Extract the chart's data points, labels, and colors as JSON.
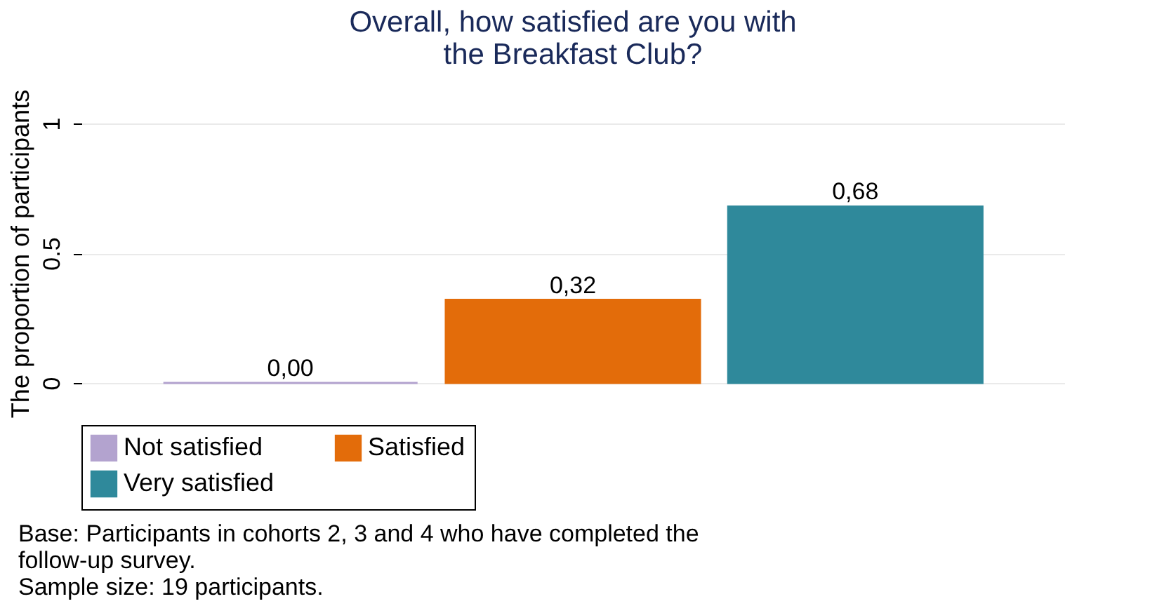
{
  "chart_data": {
    "type": "bar",
    "title": "Overall, how satisfied are you with\nthe Breakfast Club?",
    "ylabel": "The proportion of participants",
    "categories": [
      null
    ],
    "series": [
      {
        "name": "Not satisfied",
        "color": "#b3a3cf",
        "values": [
          0.0
        ],
        "value_labels": [
          "0,00"
        ]
      },
      {
        "name": "Satisfied",
        "color": "#e36c0a",
        "values": [
          0.32
        ],
        "value_labels": [
          "0,32"
        ]
      },
      {
        "name": "Very satisfied",
        "color": "#2f899b",
        "values": [
          0.68
        ],
        "value_labels": [
          "0,68"
        ]
      }
    ],
    "ylim": [
      0,
      1
    ],
    "yticks": [
      0,
      0.5,
      1
    ],
    "grid": "y",
    "legend": "bottom",
    "annotations": [
      "Base: Participants in cohorts 2, 3 and 4 who have completed the",
      "follow-up survey.",
      "Sample size: 19 participants."
    ]
  }
}
